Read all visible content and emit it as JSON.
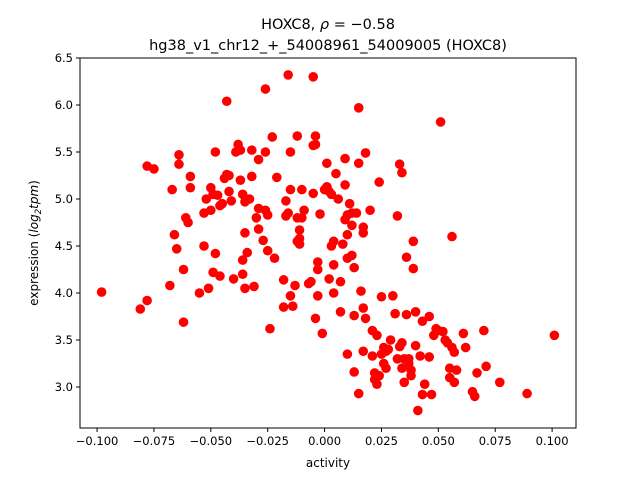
{
  "chart_data": {
    "type": "scatter",
    "title_line1": {
      "gene": "HOXC8, ",
      "rho_symbol": "ρ",
      "rho_value": " = −0.58"
    },
    "title_line2": "hg38_v1_chr12_+_54008961_54009005 (HOXC8)",
    "xlabel": "activity",
    "ylabel": {
      "prefix": "expression (",
      "log": "log",
      "sub": "2",
      "tpm": "tpm",
      "suffix": ")"
    },
    "xlim": [
      -0.1075,
      0.1105
    ],
    "ylim": [
      2.564,
      6.5
    ],
    "xticks": [
      -0.1,
      -0.075,
      -0.05,
      -0.025,
      0.0,
      0.025,
      0.05,
      0.075,
      0.1
    ],
    "xtick_labels": [
      "−0.100",
      "−0.075",
      "−0.050",
      "−0.025",
      "0.000",
      "0.025",
      "0.050",
      "0.075",
      "0.100"
    ],
    "yticks": [
      3.0,
      3.5,
      4.0,
      4.5,
      5.0,
      5.5,
      6.0,
      6.5
    ],
    "ytick_labels": [
      "3.0",
      "3.5",
      "4.0",
      "4.5",
      "5.0",
      "5.5",
      "6.0",
      "6.5"
    ],
    "grid": false,
    "marker_color": "#ff0000",
    "points": [
      [
        -0.098,
        4.01
      ],
      [
        -0.081,
        3.83
      ],
      [
        -0.078,
        3.92
      ],
      [
        -0.078,
        5.35
      ],
      [
        -0.075,
        5.32
      ],
      [
        -0.067,
        5.1
      ],
      [
        -0.066,
        4.62
      ],
      [
        -0.065,
        4.47
      ],
      [
        -0.064,
        5.47
      ],
      [
        -0.064,
        5.37
      ],
      [
        -0.068,
        4.08
      ],
      [
        -0.062,
        3.69
      ],
      [
        -0.062,
        4.25
      ],
      [
        -0.061,
        4.8
      ],
      [
        -0.06,
        4.75
      ],
      [
        -0.059,
        5.24
      ],
      [
        -0.059,
        5.12
      ],
      [
        -0.055,
        4.0
      ],
      [
        -0.053,
        4.5
      ],
      [
        -0.053,
        4.85
      ],
      [
        -0.052,
        5.0
      ],
      [
        -0.051,
        4.05
      ],
      [
        -0.05,
        4.88
      ],
      [
        -0.05,
        5.12
      ],
      [
        -0.049,
        5.05
      ],
      [
        -0.049,
        4.22
      ],
      [
        -0.048,
        5.5
      ],
      [
        -0.048,
        4.42
      ],
      [
        -0.047,
        5.04
      ],
      [
        -0.046,
        4.93
      ],
      [
        -0.046,
        4.18
      ],
      [
        -0.045,
        4.95
      ],
      [
        -0.044,
        5.22
      ],
      [
        -0.043,
        5.26
      ],
      [
        -0.043,
        6.04
      ],
      [
        -0.042,
        5.25
      ],
      [
        -0.042,
        5.08
      ],
      [
        -0.041,
        4.98
      ],
      [
        -0.04,
        4.15
      ],
      [
        -0.039,
        5.5
      ],
      [
        -0.038,
        5.58
      ],
      [
        -0.037,
        5.52
      ],
      [
        -0.037,
        5.2
      ],
      [
        -0.036,
        4.35
      ],
      [
        -0.036,
        4.2
      ],
      [
        -0.036,
        5.05
      ],
      [
        -0.035,
        4.97
      ],
      [
        -0.035,
        4.64
      ],
      [
        -0.035,
        4.05
      ],
      [
        -0.034,
        4.43
      ],
      [
        -0.033,
        5.0
      ],
      [
        -0.032,
        5.52
      ],
      [
        -0.032,
        5.24
      ],
      [
        -0.031,
        4.07
      ],
      [
        -0.03,
        4.8
      ],
      [
        -0.029,
        4.9
      ],
      [
        -0.029,
        4.68
      ],
      [
        -0.029,
        5.42
      ],
      [
        -0.027,
        4.56
      ],
      [
        -0.026,
        6.17
      ],
      [
        -0.026,
        5.5
      ],
      [
        -0.026,
        4.88
      ],
      [
        -0.025,
        4.83
      ],
      [
        -0.025,
        4.45
      ],
      [
        -0.024,
        3.62
      ],
      [
        -0.023,
        5.66
      ],
      [
        -0.022,
        4.37
      ],
      [
        -0.021,
        5.23
      ],
      [
        -0.018,
        4.14
      ],
      [
        -0.018,
        3.85
      ],
      [
        -0.017,
        4.98
      ],
      [
        -0.017,
        4.82
      ],
      [
        -0.016,
        6.32
      ],
      [
        -0.016,
        4.85
      ],
      [
        -0.015,
        5.5
      ],
      [
        -0.015,
        3.97
      ],
      [
        -0.015,
        5.1
      ],
      [
        -0.014,
        3.86
      ],
      [
        -0.013,
        4.08
      ],
      [
        -0.012,
        4.8
      ],
      [
        -0.012,
        4.55
      ],
      [
        -0.012,
        5.67
      ],
      [
        -0.011,
        4.67
      ],
      [
        -0.011,
        4.52
      ],
      [
        -0.011,
        4.58
      ],
      [
        -0.01,
        4.8
      ],
      [
        -0.01,
        5.1
      ],
      [
        -0.009,
        4.88
      ],
      [
        -0.007,
        4.1
      ],
      [
        -0.006,
        4.12
      ],
      [
        -0.005,
        6.3
      ],
      [
        -0.005,
        5.57
      ],
      [
        -0.005,
        5.06
      ],
      [
        -0.004,
        5.58
      ],
      [
        -0.004,
        3.73
      ],
      [
        -0.004,
        5.67
      ],
      [
        -0.003,
        4.33
      ],
      [
        -0.003,
        4.25
      ],
      [
        -0.003,
        3.97
      ],
      [
        -0.002,
        4.84
      ],
      [
        -0.001,
        3.57
      ],
      [
        0.0,
        5.1
      ],
      [
        0.001,
        5.13
      ],
      [
        0.001,
        5.38
      ],
      [
        0.002,
        5.08
      ],
      [
        0.002,
        4.15
      ],
      [
        0.003,
        4.5
      ],
      [
        0.003,
        5.05
      ],
      [
        0.004,
        4.55
      ],
      [
        0.004,
        4.3
      ],
      [
        0.004,
        4.0
      ],
      [
        0.005,
        5.27
      ],
      [
        0.006,
        5.0
      ],
      [
        0.007,
        3.8
      ],
      [
        0.007,
        4.12
      ],
      [
        0.008,
        4.52
      ],
      [
        0.009,
        5.43
      ],
      [
        0.009,
        5.15
      ],
      [
        0.009,
        4.78
      ],
      [
        0.01,
        4.62
      ],
      [
        0.01,
        4.37
      ],
      [
        0.01,
        3.35
      ],
      [
        0.01,
        4.83
      ],
      [
        0.011,
        4.95
      ],
      [
        0.012,
        4.4
      ],
      [
        0.012,
        4.85
      ],
      [
        0.012,
        4.72
      ],
      [
        0.013,
        3.76
      ],
      [
        0.013,
        4.27
      ],
      [
        0.013,
        3.16
      ],
      [
        0.014,
        4.85
      ],
      [
        0.015,
        5.97
      ],
      [
        0.015,
        5.38
      ],
      [
        0.015,
        2.93
      ],
      [
        0.016,
        4.02
      ],
      [
        0.017,
        4.7
      ],
      [
        0.017,
        4.64
      ],
      [
        0.017,
        3.84
      ],
      [
        0.017,
        3.38
      ],
      [
        0.018,
        3.73
      ],
      [
        0.018,
        5.49
      ],
      [
        0.02,
        4.88
      ],
      [
        0.021,
        3.33
      ],
      [
        0.021,
        3.6
      ],
      [
        0.022,
        3.15
      ],
      [
        0.022,
        3.08
      ],
      [
        0.023,
        3.55
      ],
      [
        0.023,
        3.03
      ],
      [
        0.024,
        5.18
      ],
      [
        0.024,
        3.12
      ],
      [
        0.025,
        3.96
      ],
      [
        0.025,
        3.35
      ],
      [
        0.026,
        3.42
      ],
      [
        0.026,
        3.25
      ],
      [
        0.027,
        3.38
      ],
      [
        0.027,
        3.2
      ],
      [
        0.028,
        3.4
      ],
      [
        0.029,
        3.5
      ],
      [
        0.03,
        3.97
      ],
      [
        0.031,
        3.78
      ],
      [
        0.032,
        4.82
      ],
      [
        0.032,
        3.3
      ],
      [
        0.033,
        5.37
      ],
      [
        0.033,
        3.43
      ],
      [
        0.034,
        5.28
      ],
      [
        0.034,
        3.47
      ],
      [
        0.034,
        3.2
      ],
      [
        0.035,
        3.3
      ],
      [
        0.035,
        3.05
      ],
      [
        0.036,
        4.38
      ],
      [
        0.036,
        3.77
      ],
      [
        0.037,
        3.25
      ],
      [
        0.037,
        3.3
      ],
      [
        0.038,
        3.18
      ],
      [
        0.038,
        3.12
      ],
      [
        0.039,
        4.26
      ],
      [
        0.039,
        4.55
      ],
      [
        0.04,
        3.8
      ],
      [
        0.04,
        3.44
      ],
      [
        0.041,
        2.75
      ],
      [
        0.042,
        3.33
      ],
      [
        0.043,
        3.7
      ],
      [
        0.043,
        2.92
      ],
      [
        0.044,
        3.03
      ],
      [
        0.046,
        3.32
      ],
      [
        0.046,
        3.75
      ],
      [
        0.047,
        2.92
      ],
      [
        0.048,
        3.55
      ],
      [
        0.049,
        3.62
      ],
      [
        0.05,
        3.6
      ],
      [
        0.051,
        5.82
      ],
      [
        0.052,
        3.59
      ],
      [
        0.053,
        3.5
      ],
      [
        0.054,
        3.47
      ],
      [
        0.055,
        3.1
      ],
      [
        0.055,
        3.2
      ],
      [
        0.056,
        4.6
      ],
      [
        0.056,
        3.42
      ],
      [
        0.057,
        3.37
      ],
      [
        0.057,
        3.05
      ],
      [
        0.058,
        3.18
      ],
      [
        0.061,
        3.57
      ],
      [
        0.062,
        3.42
      ],
      [
        0.065,
        2.95
      ],
      [
        0.066,
        2.9
      ],
      [
        0.067,
        3.15
      ],
      [
        0.07,
        3.6
      ],
      [
        0.071,
        3.22
      ],
      [
        0.077,
        3.05
      ],
      [
        0.089,
        2.93
      ],
      [
        0.101,
        3.55
      ]
    ]
  }
}
